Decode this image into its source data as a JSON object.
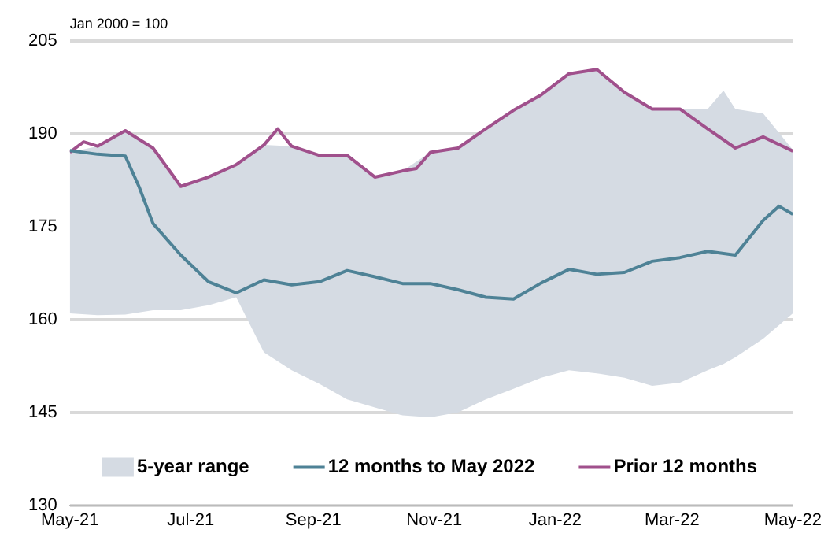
{
  "chart_data": {
    "type": "line",
    "annotations": [
      "Jan 2000 = 100"
    ],
    "xlim": [
      "2021-05-01",
      "2022-05-01"
    ],
    "xticks": [
      {
        "value": "2021-05-01",
        "label": "May-21"
      },
      {
        "value": "2021-07-01",
        "label": "Jul-21"
      },
      {
        "value": "2021-09-01",
        "label": "Sep-21"
      },
      {
        "value": "2021-11-01",
        "label": "Nov-21"
      },
      {
        "value": "2022-01-01",
        "label": "Jan-22"
      },
      {
        "value": "2022-03-01",
        "label": "Mar-22"
      },
      {
        "value": "2022-05-01",
        "label": "May-22"
      }
    ],
    "ylim": [
      130,
      205
    ],
    "yticks": [
      130,
      145,
      160,
      175,
      190,
      205
    ],
    "grid": "y",
    "legend": "bottom",
    "series": [
      {
        "name": "5-year range",
        "type": "area",
        "color": "#d5dbe3",
        "x": [
          "2021-05-01",
          "2021-05-15",
          "2021-05-29",
          "2021-06-12",
          "2021-06-26",
          "2021-07-10",
          "2021-07-24",
          "2021-08-07",
          "2021-08-21",
          "2021-09-04",
          "2021-09-18",
          "2021-10-02",
          "2021-10-16",
          "2021-10-30",
          "2021-11-13",
          "2021-11-27",
          "2021-12-11",
          "2021-12-25",
          "2022-01-08",
          "2022-01-22",
          "2022-02-05",
          "2022-02-19",
          "2022-03-05",
          "2022-03-19",
          "2022-03-27",
          "2022-04-02",
          "2022-04-16",
          "2022-05-01"
        ],
        "values": [
          null,
          null,
          null,
          null,
          null,
          null,
          null,
          null,
          null,
          null,
          null,
          null,
          null,
          null,
          null,
          null,
          null,
          null,
          null,
          null,
          null,
          null,
          null,
          null,
          null,
          null,
          null,
          null
        ],
        "upper": [
          187,
          188,
          190.5,
          187.7,
          181.5,
          183,
          185,
          188.2,
          188,
          186.5,
          186.5,
          183,
          184,
          187,
          187.7,
          190.8,
          193.8,
          196.3,
          199.7,
          200.4,
          196.7,
          194,
          194,
          194,
          197,
          194,
          193.3,
          187.4
        ],
        "lower": [
          161,
          160.7,
          160.8,
          161.5,
          161.5,
          162.3,
          163.6,
          154.7,
          151.8,
          149.6,
          147.1,
          145.8,
          144.5,
          144.2,
          145,
          147.1,
          148.8,
          150.6,
          151.8,
          151.3,
          150.6,
          149.3,
          149.8,
          151.8,
          152.8,
          153.9,
          156.9,
          161
        ]
      },
      {
        "name": "12 months to May 2022",
        "type": "line",
        "color": "#4e8296",
        "x": [
          "2021-05-01",
          "2021-05-15",
          "2021-05-29",
          "2021-06-05",
          "2021-06-12",
          "2021-06-26",
          "2021-07-10",
          "2021-07-24",
          "2021-08-07",
          "2021-08-21",
          "2021-09-04",
          "2021-09-18",
          "2021-10-02",
          "2021-10-16",
          "2021-10-30",
          "2021-11-13",
          "2021-11-27",
          "2021-12-11",
          "2021-12-25",
          "2022-01-08",
          "2022-01-22",
          "2022-02-05",
          "2022-02-19",
          "2022-03-05",
          "2022-03-19",
          "2022-04-02",
          "2022-04-16",
          "2022-04-24",
          "2022-05-01"
        ],
        "values": [
          187.3,
          186.7,
          186.4,
          181.4,
          175.5,
          170.4,
          166.1,
          164.3,
          166.4,
          165.6,
          166.1,
          167.9,
          166.9,
          165.8,
          165.8,
          164.8,
          163.6,
          163.3,
          165.9,
          168.1,
          167.3,
          167.6,
          169.4,
          170,
          171,
          170.4,
          176,
          178.3,
          177
        ]
      },
      {
        "name": "Prior 12 months",
        "type": "line",
        "color": "#a0508c",
        "x": [
          "2021-05-01",
          "2021-05-08",
          "2021-05-15",
          "2021-05-29",
          "2021-06-12",
          "2021-06-26",
          "2021-07-10",
          "2021-07-24",
          "2021-08-07",
          "2021-08-14",
          "2021-08-21",
          "2021-09-04",
          "2021-09-18",
          "2021-10-02",
          "2021-10-16",
          "2021-10-23",
          "2021-10-30",
          "2021-11-13",
          "2021-11-27",
          "2021-12-11",
          "2021-12-25",
          "2022-01-08",
          "2022-01-22",
          "2022-02-05",
          "2022-02-19",
          "2022-03-05",
          "2022-03-19",
          "2022-04-02",
          "2022-04-16",
          "2022-05-01"
        ],
        "values": [
          187,
          188.7,
          188,
          190.5,
          187.7,
          181.5,
          183,
          185,
          188.2,
          190.8,
          188,
          186.5,
          186.5,
          183,
          184,
          184.4,
          187,
          187.7,
          190.8,
          193.8,
          196.3,
          199.7,
          200.4,
          196.7,
          194,
          194,
          190.8,
          187.7,
          189.5,
          187.2
        ]
      }
    ]
  }
}
